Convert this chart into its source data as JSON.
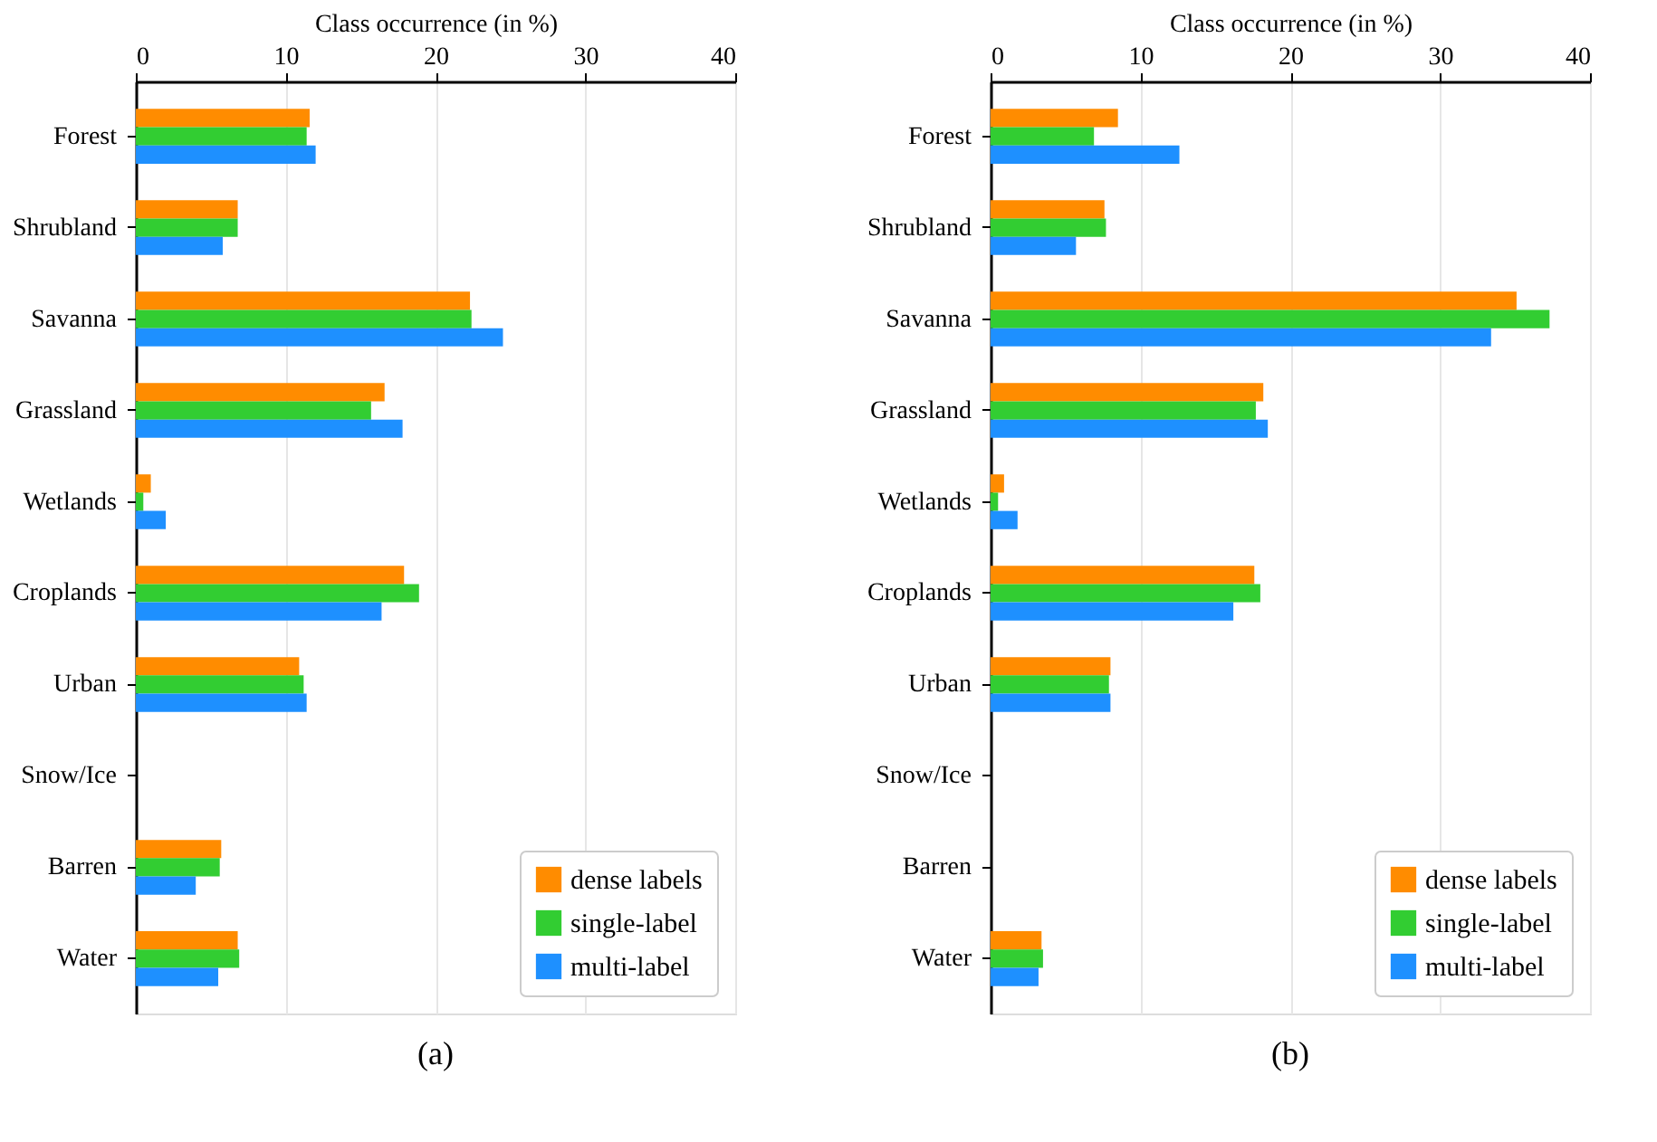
{
  "chart_data": [
    {
      "type": "bar",
      "orientation": "horizontal",
      "xlabel": "Class occurrence (in %)",
      "categories": [
        "Forest",
        "Shrubland",
        "Savanna",
        "Grassland",
        "Wetlands",
        "Croplands",
        "Urban",
        "Snow/Ice",
        "Barren",
        "Water"
      ],
      "series": [
        {
          "name": "dense labels",
          "color": "#ff8c00",
          "values": [
            11.6,
            6.8,
            22.3,
            16.6,
            1.0,
            17.9,
            10.9,
            0,
            5.7,
            6.8
          ]
        },
        {
          "name": "single-label",
          "color": "#32cd32",
          "values": [
            11.4,
            6.8,
            22.4,
            15.7,
            0.5,
            18.9,
            11.2,
            0,
            5.6,
            6.9
          ]
        },
        {
          "name": "multi-label",
          "color": "#1e90ff",
          "values": [
            12.0,
            5.8,
            24.5,
            17.8,
            2.0,
            16.4,
            11.4,
            0,
            4.0,
            5.5
          ]
        }
      ],
      "xlim": [
        0,
        40
      ],
      "xticks": [
        0,
        10,
        20,
        30,
        40
      ],
      "grid": "x",
      "legend": "bottom right",
      "annotations": [
        "(a)"
      ]
    },
    {
      "type": "bar",
      "orientation": "horizontal",
      "xlabel": "Class occurrence (in %)",
      "categories": [
        "Forest",
        "Shrubland",
        "Savanna",
        "Grassland",
        "Wetlands",
        "Croplands",
        "Urban",
        "Snow/Ice",
        "Barren",
        "Water"
      ],
      "series": [
        {
          "name": "dense labels",
          "color": "#ff8c00",
          "values": [
            8.5,
            7.6,
            35.1,
            18.2,
            0.9,
            17.6,
            8.0,
            0,
            0,
            3.4
          ]
        },
        {
          "name": "single-label",
          "color": "#32cd32",
          "values": [
            6.9,
            7.7,
            37.3,
            17.7,
            0.5,
            18.0,
            7.9,
            0,
            0,
            3.5
          ]
        },
        {
          "name": "multi-label",
          "color": "#1e90ff",
          "values": [
            12.6,
            5.7,
            33.4,
            18.5,
            1.8,
            16.2,
            8.0,
            0,
            0,
            3.2
          ]
        }
      ],
      "xlim": [
        0,
        40
      ],
      "xticks": [
        0,
        10,
        20,
        30,
        40
      ],
      "grid": "x",
      "legend": "bottom right",
      "annotations": [
        "(b)"
      ]
    }
  ]
}
